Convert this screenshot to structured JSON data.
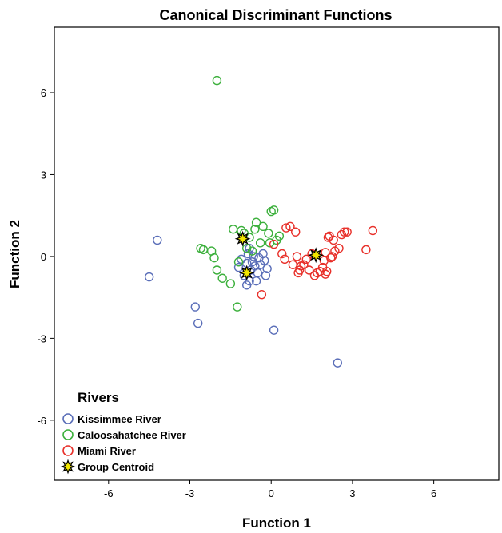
{
  "chart_data": {
    "type": "scatter",
    "title": "Canonical Discriminant Functions",
    "xlabel": "Function 1",
    "ylabel": "Function 2",
    "xlim": [
      -8,
      8.4
    ],
    "ylim": [
      -8.2,
      8.4
    ],
    "xticks": [
      -6,
      -3,
      0,
      3,
      6
    ],
    "yticks": [
      -6,
      -3,
      0,
      3,
      6
    ],
    "xtick_labels": [
      "-6",
      "-3",
      "0",
      "3",
      "6"
    ],
    "ytick_labels": [
      "-6",
      "-3",
      "0",
      "3",
      "6"
    ],
    "grid": false,
    "legend": {
      "title": "Rivers",
      "position": "bottom-left",
      "entries": [
        {
          "label": "Kissimmee River",
          "color": "#5a6eb8",
          "marker": "circle"
        },
        {
          "label": "Caloosahatchee River",
          "color": "#3cb03c",
          "marker": "circle"
        },
        {
          "label": "Miami River",
          "color": "#e8302a",
          "marker": "circle"
        },
        {
          "label": "Group Centroid",
          "color": "#f2e600",
          "marker": "star"
        }
      ]
    },
    "series": [
      {
        "name": "Kissimmee River",
        "color": "#5a6eb8",
        "points": [
          [
            -4.2,
            0.6
          ],
          [
            -4.5,
            -0.75
          ],
          [
            -2.8,
            -1.85
          ],
          [
            -2.7,
            -2.45
          ],
          [
            0.1,
            -2.7
          ],
          [
            2.45,
            -3.9
          ],
          [
            -1.2,
            -0.4
          ],
          [
            -1.0,
            -0.7
          ],
          [
            -0.9,
            -1.05
          ],
          [
            -0.8,
            -0.9
          ],
          [
            -0.75,
            -0.5
          ],
          [
            -0.7,
            -0.2
          ],
          [
            -0.65,
            0.0
          ],
          [
            -0.6,
            -0.35
          ],
          [
            -0.5,
            -0.6
          ],
          [
            -0.4,
            -0.3
          ],
          [
            -0.3,
            0.1
          ],
          [
            -0.25,
            -0.15
          ],
          [
            -0.2,
            -0.7
          ],
          [
            -0.8,
            0.3
          ],
          [
            -0.9,
            -0.25
          ],
          [
            -1.1,
            -0.1
          ],
          [
            -0.55,
            -0.9
          ],
          [
            -0.85,
            0.1
          ],
          [
            -0.45,
            -0.05
          ],
          [
            -0.15,
            -0.45
          ]
        ]
      },
      {
        "name": "Caloosahatchee River",
        "color": "#3cb03c",
        "points": [
          [
            -2.0,
            6.45
          ],
          [
            -2.6,
            0.3
          ],
          [
            -2.5,
            0.25
          ],
          [
            -2.2,
            0.2
          ],
          [
            -2.1,
            -0.05
          ],
          [
            -2.0,
            -0.5
          ],
          [
            -1.8,
            -0.8
          ],
          [
            -1.5,
            -1.0
          ],
          [
            -1.25,
            -1.85
          ],
          [
            -1.4,
            1.0
          ],
          [
            -1.1,
            0.95
          ],
          [
            -1.0,
            0.85
          ],
          [
            -0.9,
            0.3
          ],
          [
            -0.8,
            0.7
          ],
          [
            -0.6,
            1.0
          ],
          [
            -0.55,
            1.25
          ],
          [
            -0.4,
            0.5
          ],
          [
            -0.3,
            1.1
          ],
          [
            -0.1,
            0.85
          ],
          [
            -0.05,
            0.5
          ],
          [
            0.0,
            1.65
          ],
          [
            0.1,
            1.7
          ],
          [
            0.2,
            0.6
          ],
          [
            0.3,
            0.75
          ],
          [
            -1.2,
            -0.2
          ],
          [
            -0.7,
            0.2
          ]
        ]
      },
      {
        "name": "Miami River",
        "color": "#e8302a",
        "points": [
          [
            -0.35,
            -1.4
          ],
          [
            0.1,
            0.45
          ],
          [
            0.4,
            0.1
          ],
          [
            0.5,
            -0.1
          ],
          [
            0.55,
            1.05
          ],
          [
            0.7,
            1.1
          ],
          [
            0.8,
            -0.3
          ],
          [
            0.9,
            0.9
          ],
          [
            0.95,
            0.0
          ],
          [
            1.0,
            -0.6
          ],
          [
            1.05,
            -0.5
          ],
          [
            1.1,
            -0.35
          ],
          [
            1.2,
            -0.3
          ],
          [
            1.3,
            -0.1
          ],
          [
            1.4,
            -0.5
          ],
          [
            1.5,
            0.1
          ],
          [
            1.6,
            -0.7
          ],
          [
            1.7,
            -0.6
          ],
          [
            1.8,
            -0.55
          ],
          [
            1.9,
            -0.4
          ],
          [
            2.0,
            -0.65
          ],
          [
            2.05,
            -0.55
          ],
          [
            2.1,
            0.7
          ],
          [
            2.15,
            0.75
          ],
          [
            2.2,
            -0.05
          ],
          [
            2.25,
            0.0
          ],
          [
            2.3,
            0.6
          ],
          [
            2.35,
            0.2
          ],
          [
            2.5,
            0.3
          ],
          [
            2.6,
            0.8
          ],
          [
            2.7,
            0.9
          ],
          [
            2.8,
            0.9
          ],
          [
            3.5,
            0.25
          ],
          [
            3.75,
            0.95
          ],
          [
            1.95,
            -0.15
          ],
          [
            2.0,
            0.15
          ]
        ]
      }
    ],
    "centroids": [
      {
        "name": "Caloosahatchee River",
        "x": -1.05,
        "y": 0.65
      },
      {
        "name": "Kissimmee River",
        "x": -0.9,
        "y": -0.6
      },
      {
        "name": "Miami River",
        "x": 1.65,
        "y": 0.05
      }
    ]
  }
}
